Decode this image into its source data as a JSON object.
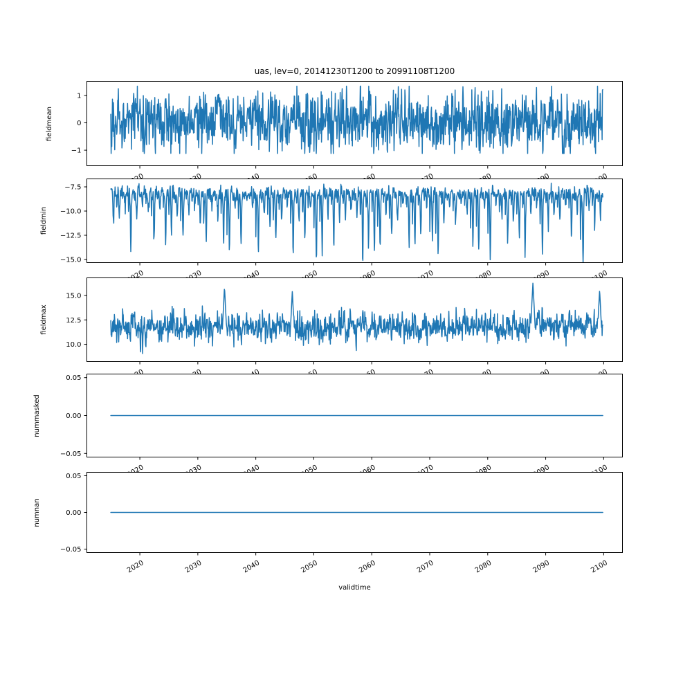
{
  "chart_data": {
    "type": "line",
    "title": "uas, lev=0, 20141230T1200 to 20991108T1200",
    "xlabel": "validtime",
    "line_color": "#1f77b4",
    "background": "#ffffff",
    "legend": "none",
    "grid": false,
    "x_start": 2014.99,
    "x_end": 2099.85,
    "xlim": [
      2010.8,
      2103.3
    ],
    "xticks": [
      2020,
      2030,
      2040,
      2050,
      2060,
      2070,
      2080,
      2090,
      2100
    ],
    "xtick_labels": [
      "2020",
      "2030",
      "2040",
      "2050",
      "2060",
      "2070",
      "2080",
      "2090",
      "2100"
    ],
    "xtick_rotation_deg": 30,
    "subplots": [
      {
        "ylabel": "fieldmean",
        "ylim": [
          -1.58,
          1.53
        ],
        "yticks": [
          1,
          0,
          -1
        ],
        "ytick_labels": [
          "1",
          "0",
          "−1"
        ],
        "series": {
          "model": "ar_noise",
          "seed": 7,
          "n": 1500,
          "mean": 0.03,
          "ar": 0.25,
          "sigma": 0.5,
          "clip": [
            -1.12,
            1.34
          ]
        }
      },
      {
        "ylabel": "fieldmin",
        "ylim": [
          -15.36,
          -6.64
        ],
        "yticks": [
          -7.5,
          -10.0,
          -12.5,
          -15.0
        ],
        "ytick_labels": [
          "−7.5",
          "−10.0",
          "−12.5",
          "−15.0"
        ],
        "series": {
          "model": "seasonal_dips",
          "seed": 11,
          "n": 1500,
          "base": -8.15,
          "sigma": 0.36,
          "dip_min": 1.2,
          "dip_max": 7.0,
          "dip_width": 0.1,
          "dip_center": 0.45,
          "second_dip_center": 0.0,
          "second_dip_scale": 0.55,
          "deep_years": [
            [
              2096,
              7.1
            ],
            [
              2035,
              6.1
            ],
            [
              2059,
              5.8
            ]
          ],
          "clip": [
            -15.3,
            -6.95
          ]
        }
      },
      {
        "ylabel": "fieldmax",
        "ylim": [
          8.2,
          16.84
        ],
        "yticks": [
          15.0,
          12.5,
          10.0
        ],
        "ytick_labels": [
          "15.0",
          "12.5",
          "10.0"
        ],
        "series": {
          "model": "ar_noise",
          "seed": 23,
          "n": 1500,
          "mean": 11.75,
          "ar": 0.3,
          "sigma": 0.7,
          "clip": [
            9.05,
            15.05
          ],
          "trend_start": 2075,
          "trend_amount": 0.3,
          "spikes": [
            [
              2034.6,
              15.9
            ],
            [
              2046.3,
              15.45
            ],
            [
              2087.8,
              16.35
            ],
            [
              2099.3,
              15.62
            ]
          ]
        }
      },
      {
        "ylabel": "nummasked",
        "ylim": [
          -0.0552,
          0.0552
        ],
        "yticks": [
          0.05,
          0.0,
          -0.05
        ],
        "ytick_labels": [
          "0.05",
          "0.00",
          "−0.05"
        ],
        "series": {
          "model": "constant",
          "value": 0
        }
      },
      {
        "ylabel": "numnan",
        "ylim": [
          -0.0552,
          0.0552
        ],
        "yticks": [
          0.05,
          0.0,
          -0.05
        ],
        "ytick_labels": [
          "0.05",
          "0.00",
          "−0.05"
        ],
        "series": {
          "model": "constant",
          "value": 0
        }
      }
    ]
  }
}
